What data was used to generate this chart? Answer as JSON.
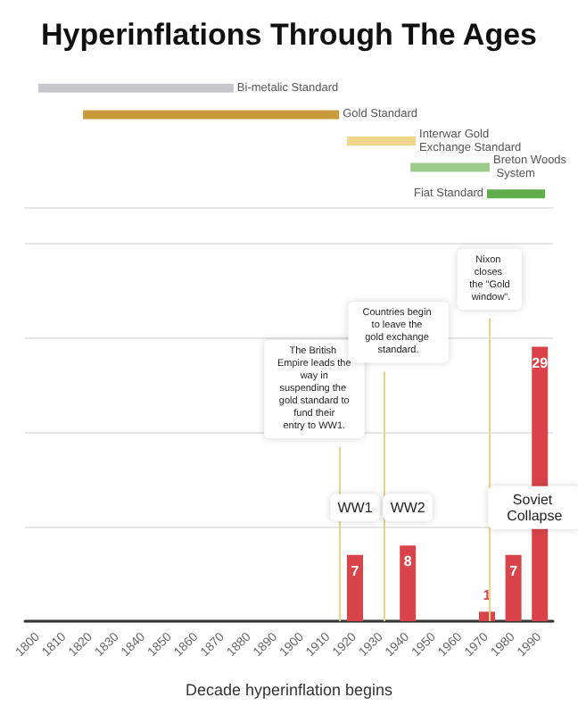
{
  "chart_data": [
    {
      "type": "bar",
      "title": "Hyperinflations Through The Ages",
      "orientation": "horizontal",
      "categories": [
        "Bi-metalic Standard",
        "Gold Standard",
        "Interwar Gold Exchange Standard",
        "Breton Woods System",
        "Fiat Standard"
      ],
      "base": [
        1800,
        1817,
        1917,
        1941,
        1970
      ],
      "values": [
        74,
        97,
        26,
        30,
        22
      ],
      "colors": [
        "#c8c8cc",
        "#c99a3a",
        "#f0d58a",
        "#9ccc8a",
        "#5fae4c"
      ],
      "xlim": [
        1795,
        1995
      ],
      "tick_labels": false
    },
    {
      "type": "bar",
      "xlabel": "Decade hyperinflation begins",
      "x": [
        1920,
        1940,
        1970,
        1980,
        1990
      ],
      "values": [
        7,
        8,
        1,
        7,
        29
      ],
      "color": "#d9434a",
      "data_labels": true,
      "xlim": [
        1795,
        1995
      ],
      "xticks": [
        1800,
        1810,
        1820,
        1830,
        1840,
        1850,
        1860,
        1870,
        1880,
        1890,
        1900,
        1910,
        1920,
        1930,
        1940,
        1950,
        1960,
        1970,
        1980,
        1990
      ],
      "ylim": [
        0,
        40
      ],
      "yticks": [
        {
          "value": 0,
          "label": null
        },
        {
          "value": 10,
          "label": null
        },
        {
          "value": 20,
          "label": null
        },
        {
          "value": 30,
          "label": null
        },
        {
          "value": 40,
          "label": null
        }
      ],
      "grid": "y",
      "tick_labels": "x",
      "ref_lines": [
        {
          "axis": "x",
          "value": 1914,
          "label": "The British Empire leads the way in suspending the gold standard to fund their entry to WW1.",
          "color": "#e6d48e"
        },
        {
          "axis": "x",
          "value": 1931,
          "label": "Countries begin to leave the gold exchange standard.",
          "color": "#e6d48e"
        },
        {
          "axis": "x",
          "value": 1971,
          "label": "Nixon closes the \"Gold window\".",
          "color": "#e6d48e"
        }
      ],
      "annotations": [
        {
          "text": "WW1",
          "x": 1920,
          "y": 12
        },
        {
          "text": "WW2",
          "x": 1940,
          "y": 12
        },
        {
          "text": "Soviet Collapse",
          "x": 1988,
          "y": 12
        }
      ]
    }
  ]
}
